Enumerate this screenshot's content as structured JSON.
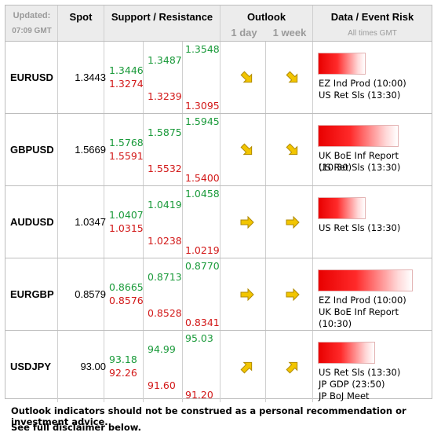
{
  "header": {
    "updated_label": "Updated:",
    "updated_time": "07:09 GMT",
    "spot": "Spot",
    "support_resistance": "Support / Resistance",
    "outlook": "Outlook",
    "outlook_1day": "1 day",
    "outlook_1week": "1 week",
    "data_event_risk": "Data / Event Risk",
    "times_note": "All times GMT"
  },
  "colors": {
    "support": "#1a9a3a",
    "resistance": "#d21818",
    "arrow": "#f2c500",
    "event_bar": "#e80000"
  },
  "rows": [
    {
      "pair": "EURUSD",
      "spot": "1.3443",
      "levels": {
        "s1": "1.3446",
        "r1": "1.3274",
        "s2": "1.3487",
        "r2": "1.3239",
        "s3": "1.3548",
        "r3": "1.3095"
      },
      "outlook_1day": "down-right-arrow-icon",
      "outlook_1week": "down-right-arrow-icon",
      "risk_level": 0.5,
      "events": [
        "EZ Ind Prod (10:00)",
        "US Ret Sls (13:30)"
      ]
    },
    {
      "pair": "GBPUSD",
      "spot": "1.5669",
      "levels": {
        "s1": "1.5768",
        "r1": "1.5591",
        "s2": "1.5875",
        "r2": "1.5532",
        "s3": "1.5945",
        "r3": "1.5400"
      },
      "outlook_1day": "down-right-arrow-icon",
      "outlook_1week": "down-right-arrow-icon",
      "risk_level": 0.85,
      "events": [
        "UK BoE Inf Report (10:30)",
        "US Ret Sls (13:30)"
      ]
    },
    {
      "pair": "AUDUSD",
      "spot": "1.0347",
      "levels": {
        "s1": "1.0407",
        "r1": "1.0315",
        "s2": "1.0419",
        "r2": "1.0238",
        "s3": "1.0458",
        "r3": "1.0219"
      },
      "outlook_1day": "right-arrow-icon",
      "outlook_1week": "right-arrow-icon",
      "risk_level": 0.5,
      "events": [
        "US Ret Sls (13:30)"
      ]
    },
    {
      "pair": "EURGBP",
      "spot": "0.8579",
      "levels": {
        "s1": "0.8665",
        "r1": "0.8576",
        "s2": "0.8713",
        "r2": "0.8528",
        "s3": "0.8770",
        "r3": "0.8341"
      },
      "outlook_1day": "right-arrow-icon",
      "outlook_1week": "right-arrow-icon",
      "risk_level": 1.0,
      "events": [
        "EZ Ind Prod (10:00)",
        "UK BoE Inf Report (10:30)"
      ]
    },
    {
      "pair": "USDJPY",
      "spot": "93.00",
      "levels": {
        "s1": "93.18",
        "r1": "92.26",
        "s2": "94.99",
        "r2": "91.60",
        "s3": "95.03",
        "r3": "91.20"
      },
      "outlook_1day": "up-right-arrow-icon",
      "outlook_1week": "up-right-arrow-icon",
      "risk_level": 0.6,
      "events": [
        "US Ret Sls (13:30)",
        "JP GDP (23:50)",
        "JP BoJ Meet"
      ]
    }
  ],
  "disclaimer": {
    "line1": "Outlook indicators should not be construed as a personal recommendation or investment advice.",
    "line2": "See full disclaimer below."
  }
}
